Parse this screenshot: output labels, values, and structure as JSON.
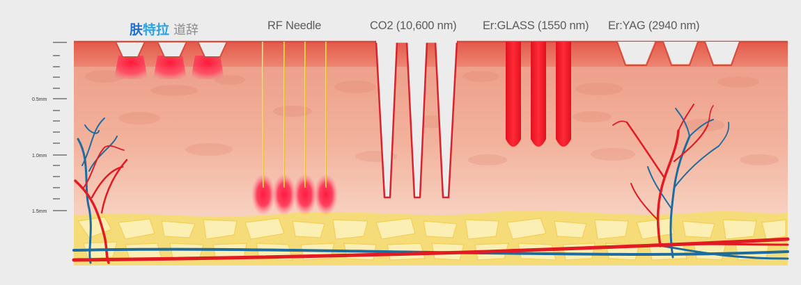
{
  "brand": {
    "part1": "肤",
    "part2": "特拉",
    "part3": "道辞"
  },
  "labels": {
    "rf_needle": "RF Needle",
    "co2": "CO2 (10,600 nm)",
    "er_glass": "Er:GLASS (1550 nm)",
    "er_yag": "Er:YAG (2940 nm)"
  },
  "scale": {
    "mark_05": "0.5mm",
    "mark_10": "1.0mm",
    "mark_15": "1.5mm"
  },
  "colors": {
    "background": "#ececec",
    "epidermis": "#e96a5a",
    "dermis_top": "#eea28d",
    "dermis_bottom": "#fbe3d6",
    "fat": "#f7df7e",
    "artery": "#e01b24",
    "vein": "#1f6f9f",
    "laser": "#ef1c2a",
    "needle": "#f1c232"
  }
}
